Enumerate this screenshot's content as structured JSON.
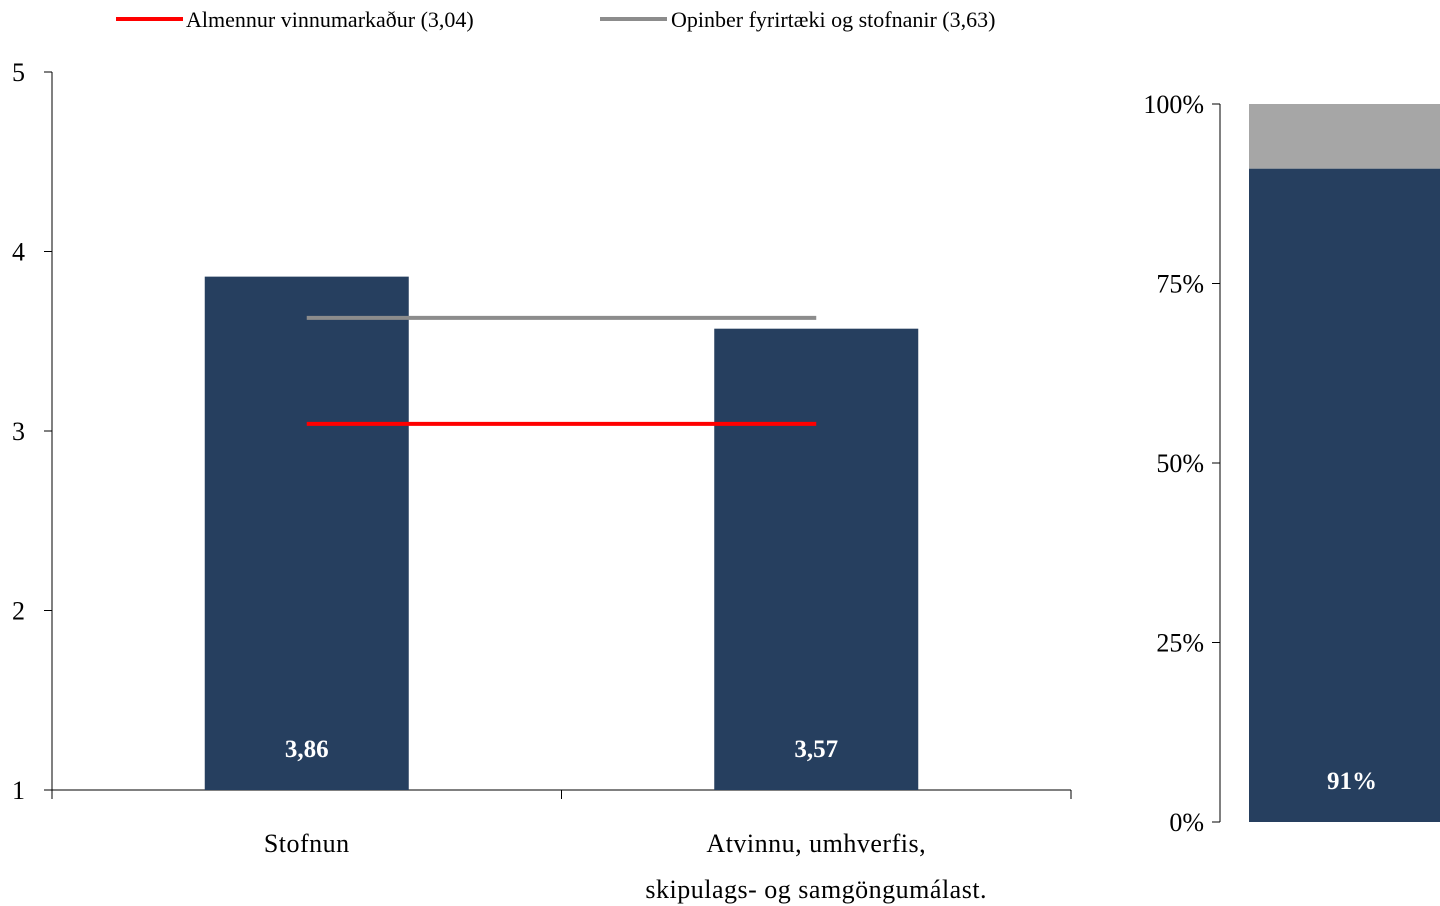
{
  "chart_data": [
    {
      "type": "bar",
      "categories": [
        "Stofnun",
        "Atvinnu, umhverfis, skipulags- og samgöngumálast."
      ],
      "category_label_lines": [
        [
          "Stofnun"
        ],
        [
          "Atvinnu, umhverfis,",
          "skipulags- og samgöngumálast."
        ]
      ],
      "values": [
        3.86,
        3.57
      ],
      "value_labels": [
        "3,86",
        "3,57"
      ],
      "bar_color": "#263f5f",
      "ylim": [
        1,
        5
      ],
      "yticks": [
        "1",
        "2",
        "3",
        "4",
        "5"
      ],
      "grid": false,
      "reference_lines": [
        {
          "name": "Almennur vinnumarkaður (3,04)",
          "value": 3.04,
          "color": "#ff0000"
        },
        {
          "name": "Opinber fyrirtæki og stofnanir (3,63)",
          "value": 3.63,
          "color": "#8c8c8c"
        }
      ],
      "legend_position": "top"
    },
    {
      "type": "bar",
      "stacked": true,
      "categories": [
        ""
      ],
      "series": [
        {
          "values": [
            91
          ],
          "color": "#263f5f",
          "label": "91%"
        },
        {
          "values": [
            9
          ],
          "color": "#a6a6a6"
        }
      ],
      "ylim": [
        0,
        100
      ],
      "yticks": [
        "0%",
        "25%",
        "50%",
        "75%",
        "100%"
      ],
      "grid": false
    }
  ]
}
